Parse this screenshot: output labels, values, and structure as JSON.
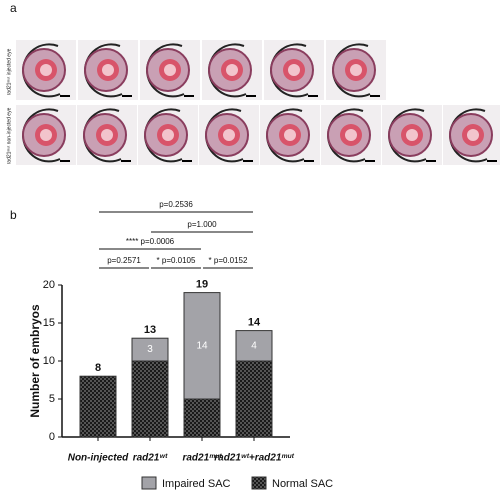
{
  "panel_a": {
    "label": "a",
    "row_labels": [
      "rad21ᵐᵘᵗ injected eye",
      "rad21ᵐᵘᵗ non-injected eye"
    ]
  },
  "chart_data": {
    "type": "stacked_bar",
    "panel_label": "b",
    "categories": [
      "Non-injected",
      "rad21ʷᵗ",
      "rad21ᵐᵘᵗ",
      "rad21ʷᵗ+rad21ᵐᵘᵗ"
    ],
    "series": [
      {
        "name": "Normal SAC",
        "color": "#1a1a1a",
        "values": [
          8,
          10,
          5,
          10
        ]
      },
      {
        "name": "Impaired SAC",
        "color": "#a3a3a8",
        "values": [
          0,
          3,
          14,
          4
        ]
      }
    ],
    "totals": [
      8,
      13,
      19,
      14
    ],
    "ylabel": "Number of embryos",
    "ylim": [
      0,
      20
    ],
    "yticks": [
      0,
      5,
      10,
      15,
      20
    ],
    "comparisons": [
      {
        "from": 0,
        "to": 3,
        "label": "p=0.2536"
      },
      {
        "from": 1,
        "to": 3,
        "label": "p=1.000"
      },
      {
        "from": 0,
        "to": 2,
        "label": "**** p=0.0006"
      },
      {
        "from": 0,
        "to": 1,
        "label": "p=0.2571"
      },
      {
        "from": 1,
        "to": 2,
        "label": "* p=0.0105"
      },
      {
        "from": 2,
        "to": 3,
        "label": "* p=0.0152"
      }
    ],
    "legend_order": [
      1,
      0
    ]
  }
}
